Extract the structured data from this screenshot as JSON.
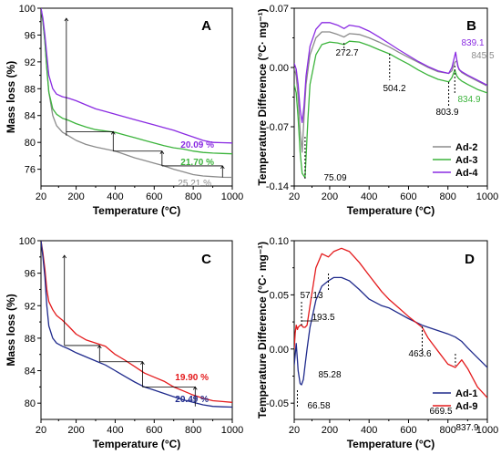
{
  "chart_data": [
    {
      "panel": "A",
      "type": "line",
      "xlabel": "Temperature (°C)",
      "ylabel": "Mass loss (%)",
      "xlim": [
        20,
        1000
      ],
      "ylim": [
        73.5,
        100
      ],
      "xticks": [
        20,
        200,
        400,
        600,
        800,
        1000
      ],
      "yticks": [
        76,
        80,
        84,
        88,
        92,
        96,
        100
      ],
      "series": [
        {
          "color": "#8b8b8b",
          "x": [
            20,
            30,
            40,
            50,
            60,
            80,
            100,
            130,
            160,
            200,
            250,
            300,
            350,
            400,
            450,
            500,
            550,
            600,
            650,
            700,
            750,
            800,
            850,
            900,
            950,
            1000
          ],
          "y": [
            100,
            98,
            95,
            91,
            87.5,
            84,
            82.5,
            81.5,
            81,
            80.3,
            79.7,
            79.3,
            79,
            78.7,
            78.2,
            77.7,
            77.3,
            76.9,
            76.5,
            76,
            75.6,
            75.2,
            75.0,
            74.9,
            74.8,
            74.79
          ]
        },
        {
          "color": "#3cb43c",
          "x": [
            20,
            30,
            40,
            50,
            60,
            80,
            100,
            130,
            160,
            200,
            250,
            300,
            350,
            400,
            450,
            500,
            550,
            600,
            650,
            700,
            750,
            800,
            850,
            900,
            950,
            1000
          ],
          "y": [
            100,
            98,
            95,
            91,
            87.5,
            85,
            84.2,
            83.6,
            83.3,
            82.8,
            82.3,
            81.9,
            81.7,
            81.5,
            81.1,
            80.7,
            80.3,
            79.9,
            79.5,
            79.2,
            79.0,
            78.7,
            78.5,
            78.4,
            78.35,
            78.3
          ]
        },
        {
          "color": "#8a2be2",
          "x": [
            20,
            30,
            40,
            50,
            60,
            80,
            100,
            130,
            160,
            200,
            250,
            300,
            350,
            400,
            450,
            500,
            550,
            600,
            650,
            700,
            750,
            800,
            850,
            900,
            950,
            1000
          ],
          "y": [
            100,
            98.5,
            96,
            93,
            90,
            88,
            87.2,
            86.8,
            86.6,
            86.2,
            85.6,
            85,
            84.6,
            84.2,
            83.8,
            83.4,
            83.0,
            82.6,
            82.2,
            81.8,
            81.3,
            80.8,
            80.3,
            80.0,
            79.95,
            79.91
          ]
        }
      ],
      "annotations": [
        {
          "text": "20.09 %",
          "color": "#8a2be2"
        },
        {
          "text": "21.70 %",
          "color": "#3cb43c"
        },
        {
          "text": "25.21 %",
          "color": "#8b8b8b"
        }
      ]
    },
    {
      "panel": "B",
      "type": "line",
      "xlabel": "Temperature (°C)",
      "ylabel": "Temperature Difference (°C· mg⁻¹)",
      "xlim": [
        20,
        1000
      ],
      "ylim": [
        -0.14,
        0.07
      ],
      "xticks": [
        20,
        200,
        400,
        600,
        800,
        1000
      ],
      "yticks": [
        -0.14,
        -0.07,
        0.0,
        0.07
      ],
      "legend": {
        "position": "bottom-right",
        "entries": [
          "Ad-2",
          "Ad-3",
          "Ad-4"
        ]
      },
      "series": [
        {
          "name": "Ad-2",
          "color": "#8b8b8b",
          "x": [
            20,
            30,
            40,
            50,
            60,
            70,
            80,
            100,
            130,
            160,
            200,
            240,
            272.7,
            300,
            350,
            400,
            450,
            504.2,
            550,
            600,
            650,
            700,
            750,
            803.9,
            820,
            835,
            845.5,
            855,
            870,
            900,
            950,
            1000
          ],
          "y": [
            0.0,
            -0.01,
            -0.035,
            -0.075,
            -0.1,
            -0.058,
            -0.02,
            0.015,
            0.035,
            0.042,
            0.042,
            0.039,
            0.036,
            0.04,
            0.039,
            0.035,
            0.03,
            0.024,
            0.018,
            0.012,
            0.006,
            0.0,
            -0.005,
            -0.007,
            -0.004,
            0.006,
            0.008,
            -0.002,
            -0.006,
            -0.01,
            -0.016,
            -0.022
          ]
        },
        {
          "name": "Ad-3",
          "color": "#3cb43c",
          "x": [
            20,
            30,
            40,
            50,
            60,
            75.09,
            90,
            100,
            130,
            160,
            200,
            240,
            272.7,
            300,
            350,
            400,
            450,
            504.2,
            550,
            600,
            650,
            700,
            750,
            803.9,
            820,
            834.9,
            845,
            855,
            870,
            900,
            950,
            1000
          ],
          "y": [
            -0.02,
            -0.03,
            -0.06,
            -0.1,
            -0.125,
            -0.13,
            -0.06,
            -0.02,
            0.015,
            0.027,
            0.03,
            0.029,
            0.027,
            0.031,
            0.03,
            0.026,
            0.021,
            0.016,
            0.01,
            0.004,
            -0.003,
            -0.009,
            -0.014,
            -0.017,
            -0.012,
            -0.003,
            -0.01,
            -0.013,
            -0.016,
            -0.02,
            -0.026,
            -0.03
          ]
        },
        {
          "name": "Ad-4",
          "color": "#8a2be2",
          "x": [
            20,
            30,
            40,
            50,
            60,
            70,
            80,
            100,
            130,
            160,
            200,
            240,
            272.7,
            300,
            350,
            400,
            450,
            504.2,
            550,
            600,
            650,
            700,
            750,
            803.9,
            820,
            839.1,
            850,
            860,
            870,
            900,
            950,
            1000
          ],
          "y": [
            0.005,
            -0.002,
            -0.02,
            -0.05,
            -0.065,
            -0.045,
            -0.01,
            0.025,
            0.045,
            0.053,
            0.053,
            0.05,
            0.046,
            0.05,
            0.048,
            0.043,
            0.036,
            0.028,
            0.021,
            0.014,
            0.007,
            0.001,
            -0.004,
            -0.007,
            0.0,
            0.018,
            0.001,
            -0.003,
            -0.005,
            -0.009,
            -0.015,
            -0.021
          ]
        }
      ],
      "annotations": [
        {
          "text": "272.7",
          "color": "#000000"
        },
        {
          "text": "504.2",
          "color": "#000000"
        },
        {
          "text": "839.1",
          "color": "#8a2be2"
        },
        {
          "text": "845.5",
          "color": "#8b8b8b"
        },
        {
          "text": "834.9",
          "color": "#3cb43c"
        },
        {
          "text": "803.9",
          "color": "#000000"
        },
        {
          "text": "75.09",
          "color": "#000000"
        }
      ]
    },
    {
      "panel": "C",
      "type": "line",
      "xlabel": "Temperature (°C)",
      "ylabel": "Mass loss (%)",
      "xlim": [
        20,
        1000
      ],
      "ylim": [
        78,
        100
      ],
      "xticks": [
        20,
        200,
        400,
        600,
        800,
        1000
      ],
      "yticks": [
        80,
        84,
        88,
        92,
        96,
        100
      ],
      "series": [
        {
          "color": "#e41a1c",
          "x": [
            20,
            30,
            40,
            50,
            60,
            80,
            100,
            130,
            160,
            200,
            250,
            300,
            350,
            400,
            450,
            500,
            550,
            600,
            650,
            700,
            750,
            800,
            850,
            900,
            950,
            1000
          ],
          "y": [
            100,
            98.5,
            96.5,
            94,
            92.5,
            91.5,
            90.8,
            90.2,
            89.5,
            88.5,
            87.8,
            87.4,
            87.0,
            86.0,
            85.3,
            84.5,
            83.7,
            83.2,
            82.7,
            82.0,
            81.5,
            81.0,
            80.6,
            80.3,
            80.2,
            80.1
          ]
        },
        {
          "color": "#1f2a8c",
          "x": [
            20,
            30,
            40,
            50,
            60,
            80,
            100,
            130,
            160,
            200,
            250,
            300,
            350,
            400,
            450,
            500,
            550,
            600,
            650,
            700,
            750,
            800,
            850,
            900,
            950,
            1000
          ],
          "y": [
            100,
            98,
            95.5,
            92,
            89.5,
            88,
            87.4,
            87,
            86.7,
            86.2,
            85.7,
            85.2,
            84.7,
            84.0,
            83.3,
            82.6,
            82.0,
            81.6,
            81.2,
            80.8,
            80.4,
            80.1,
            79.8,
            79.6,
            79.55,
            79.51
          ]
        }
      ],
      "annotations": [
        {
          "text": "19.90 %",
          "color": "#e41a1c"
        },
        {
          "text": "20.49 %",
          "color": "#1f2a8c"
        }
      ]
    },
    {
      "panel": "D",
      "type": "line",
      "xlabel": "Temperature (°C)",
      "ylabel": "Temperature Difference (°C· mg⁻¹)",
      "xlim": [
        20,
        1000
      ],
      "ylim": [
        -0.065,
        0.1
      ],
      "xticks": [
        20,
        200,
        400,
        600,
        800,
        1000
      ],
      "yticks": [
        -0.05,
        0.0,
        0.05,
        0.1
      ],
      "legend": {
        "position": "bottom-right",
        "entries": [
          "Ad-1",
          "Ad-9"
        ]
      },
      "series": [
        {
          "name": "Ad-1",
          "color": "#1f2a8c",
          "x": [
            20,
            25,
            30,
            36,
            40,
            50,
            57.13,
            66.58,
            75,
            85.28,
            100,
            130,
            160,
            193.5,
            220,
            260,
            300,
            350,
            400,
            463.6,
            500,
            550,
            600,
            669.5,
            700,
            750,
            800,
            837.9,
            870,
            900,
            950,
            1000
          ],
          "y": [
            -0.015,
            -0.005,
            0.005,
            -0.01,
            -0.02,
            -0.032,
            -0.033,
            -0.028,
            -0.015,
            0.0,
            0.02,
            0.045,
            0.058,
            0.063,
            0.066,
            0.066,
            0.063,
            0.055,
            0.046,
            0.04,
            0.038,
            0.033,
            0.028,
            0.022,
            0.02,
            0.017,
            0.014,
            0.011,
            0.007,
            0.001,
            -0.008,
            -0.017
          ]
        },
        {
          "name": "Ad-9",
          "color": "#e41a1c",
          "x": [
            20,
            25,
            30,
            36,
            40,
            50,
            57.13,
            66.58,
            75,
            85.28,
            100,
            130,
            160,
            193.5,
            220,
            260,
            300,
            350,
            400,
            463.6,
            500,
            550,
            600,
            669.5,
            700,
            750,
            800,
            837.9,
            870,
            900,
            950,
            1000
          ],
          "y": [
            0.0,
            0.015,
            0.022,
            0.018,
            0.02,
            0.022,
            0.022,
            0.02,
            0.02,
            0.022,
            0.04,
            0.075,
            0.088,
            0.085,
            0.09,
            0.093,
            0.09,
            0.08,
            0.068,
            0.053,
            0.046,
            0.038,
            0.03,
            0.02,
            0.01,
            -0.002,
            -0.014,
            -0.017,
            -0.01,
            -0.018,
            -0.035,
            -0.045
          ]
        }
      ],
      "annotations": [
        {
          "text": "57.13",
          "color": "#000000"
        },
        {
          "text": "193.5",
          "color": "#000000"
        },
        {
          "text": "85.28",
          "color": "#000000"
        },
        {
          "text": "463.6",
          "color": "#000000"
        },
        {
          "text": "669.5",
          "color": "#000000"
        },
        {
          "text": "837.9",
          "color": "#000000"
        },
        {
          "text": "66.58",
          "color": "#000000"
        }
      ]
    }
  ]
}
